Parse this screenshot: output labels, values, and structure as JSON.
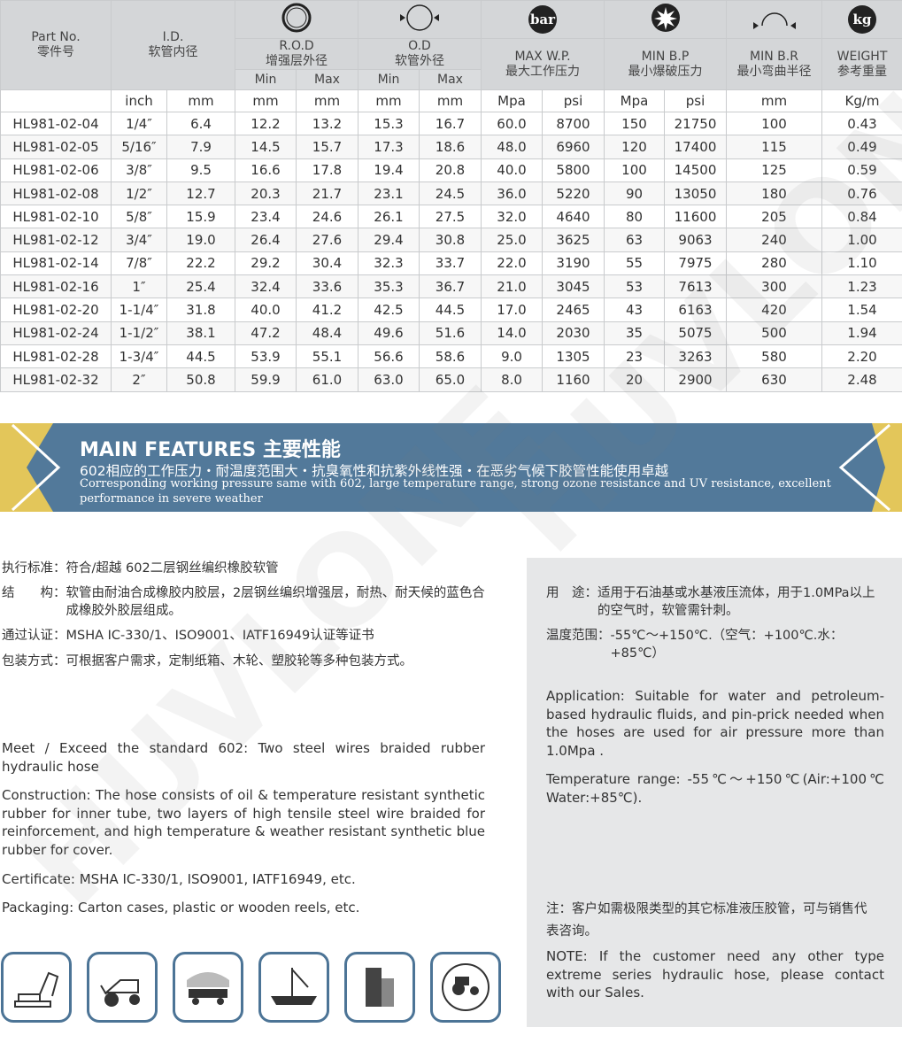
{
  "table": {
    "headers": {
      "part": "Part No.",
      "part_cn": "零件号",
      "id": "I.D.",
      "id_cn": "软管内径",
      "rod": "R.O.D",
      "rod_cn": "增强层外径",
      "od": "O.D",
      "od_cn": "软管外径",
      "wp": "MAX W.P.",
      "wp_cn": "最大工作压力",
      "bp": "MIN B.P",
      "bp_cn": "最小爆破压力",
      "br": "MIN B.R",
      "br_cn": "最小弯曲半径",
      "wt": "WEIGHT",
      "wt_cn": "参考重量",
      "min": "Min",
      "max": "Max",
      "bar_icon": "bar",
      "kg_icon": "kg"
    },
    "units": [
      "",
      "inch",
      "mm",
      "mm",
      "mm",
      "mm",
      "mm",
      "Mpa",
      "psi",
      "Mpa",
      "psi",
      "mm",
      "Kg/m"
    ],
    "rows": [
      [
        "HL981-02-04",
        "1/4″",
        "6.4",
        "12.2",
        "13.2",
        "15.3",
        "16.7",
        "60.0",
        "8700",
        "150",
        "21750",
        "100",
        "0.43"
      ],
      [
        "HL981-02-05",
        "5/16″",
        "7.9",
        "14.5",
        "15.7",
        "17.3",
        "18.6",
        "48.0",
        "6960",
        "120",
        "17400",
        "115",
        "0.49"
      ],
      [
        "HL981-02-06",
        "3/8″",
        "9.5",
        "16.6",
        "17.8",
        "19.4",
        "20.8",
        "40.0",
        "5800",
        "100",
        "14500",
        "125",
        "0.59"
      ],
      [
        "HL981-02-08",
        "1/2″",
        "12.7",
        "20.3",
        "21.7",
        "23.1",
        "24.5",
        "36.0",
        "5220",
        "90",
        "13050",
        "180",
        "0.76"
      ],
      [
        "HL981-02-10",
        "5/8″",
        "15.9",
        "23.4",
        "24.6",
        "26.1",
        "27.5",
        "32.0",
        "4640",
        "80",
        "11600",
        "205",
        "0.84"
      ],
      [
        "HL981-02-12",
        "3/4″",
        "19.0",
        "26.4",
        "27.6",
        "29.4",
        "30.8",
        "25.0",
        "3625",
        "63",
        "9063",
        "240",
        "1.00"
      ],
      [
        "HL981-02-14",
        "7/8″",
        "22.2",
        "29.2",
        "30.4",
        "32.3",
        "33.7",
        "22.0",
        "3190",
        "55",
        "7975",
        "280",
        "1.10"
      ],
      [
        "HL981-02-16",
        "1″",
        "25.4",
        "32.4",
        "33.6",
        "35.3",
        "36.7",
        "21.0",
        "3045",
        "53",
        "7613",
        "300",
        "1.23"
      ],
      [
        "HL981-02-20",
        "1-1/4″",
        "31.8",
        "40.0",
        "41.2",
        "42.5",
        "44.5",
        "17.0",
        "2465",
        "43",
        "6163",
        "420",
        "1.54"
      ],
      [
        "HL981-02-24",
        "1-1/2″",
        "38.1",
        "47.2",
        "48.4",
        "49.6",
        "51.6",
        "14.0",
        "2030",
        "35",
        "5075",
        "500",
        "1.94"
      ],
      [
        "HL981-02-28",
        "1-3/4″",
        "44.5",
        "53.9",
        "55.1",
        "56.6",
        "58.6",
        "9.0",
        "1305",
        "23",
        "3263",
        "580",
        "2.20"
      ],
      [
        "HL981-02-32",
        "2″",
        "50.8",
        "59.9",
        "61.0",
        "63.0",
        "65.0",
        "8.0",
        "1160",
        "20",
        "2900",
        "630",
        "2.48"
      ]
    ]
  },
  "banner": {
    "title": "MAIN FEATURES",
    "title_cn": "主要性能",
    "line_cn": "602相应的工作压力・耐温度范围大・抗臭氧性和抗紫外线性强・在恶劣气候下胶管性能使用卓越",
    "line_en": "Corresponding working pressure same with 602, large temperature range, strong ozone resistance and UV resistance, excellent performance in severe weather",
    "colors": {
      "band": "#52799a",
      "accent": "#e3c65a"
    }
  },
  "left_cn": {
    "standard": "执行标准：符合/超越 602二层钢丝编织橡胶软管",
    "construction_label": "结　　构：",
    "construction": "软管由耐油合成橡胶内胶层，2层钢丝编织增强层，耐热、耐天候的蓝色合成橡胶外胶层组成。",
    "cert": "通过认证：MSHA IC-330/1、ISO9001、IATF16949认证等证书",
    "packing": "包装方式：可根据客户需求，定制纸箱、木轮、塑胶轮等多种包装方式。"
  },
  "left_en": {
    "standard": "Meet / Exceed the standard 602: Two steel wires braided rubber hydraulic hose",
    "construction": "Construction: The hose consists of oil & temperature resistant synthetic rubber for inner tube, two layers of high tensile steel wire braided for reinforcement, and high temperature & weather resistant synthetic blue rubber for cover.",
    "cert": "Certificate: MSHA IC-330/1, ISO9001, IATF16949, etc.",
    "packing": "Packaging: Carton cases, plastic or wooden reels, etc."
  },
  "right": {
    "use_label": "用　途：",
    "use": "适用于石油基或水基液压流体，用于1.0MPa以上的空气时，软管需针刺。",
    "temp_label": "温度范围：",
    "temp": "-55℃～+150℃.（空气：+100℃.水：+85℃）",
    "application": "Application: Suitable for water and petroleum-based hydraulic fluids, and pin-prick needed when the hoses are used for air pressure more than 1.0Mpa .",
    "temperature": "Temperature range: -55℃～+150℃(Air:+100℃ Water:+85℃).",
    "note_cn": "注：客户如需极限类型的其它标准液压胶管，可与销售代表咨询。",
    "note_en": "NOTE: If the customer need any other type extreme series hydraulic hose, please contact with our Sales."
  },
  "application_icons": [
    "excavator-icon",
    "loader-icon",
    "mining-truck-icon",
    "ship-crane-icon",
    "building-icon",
    "tractor-icon"
  ],
  "watermark": "HUVLONE"
}
